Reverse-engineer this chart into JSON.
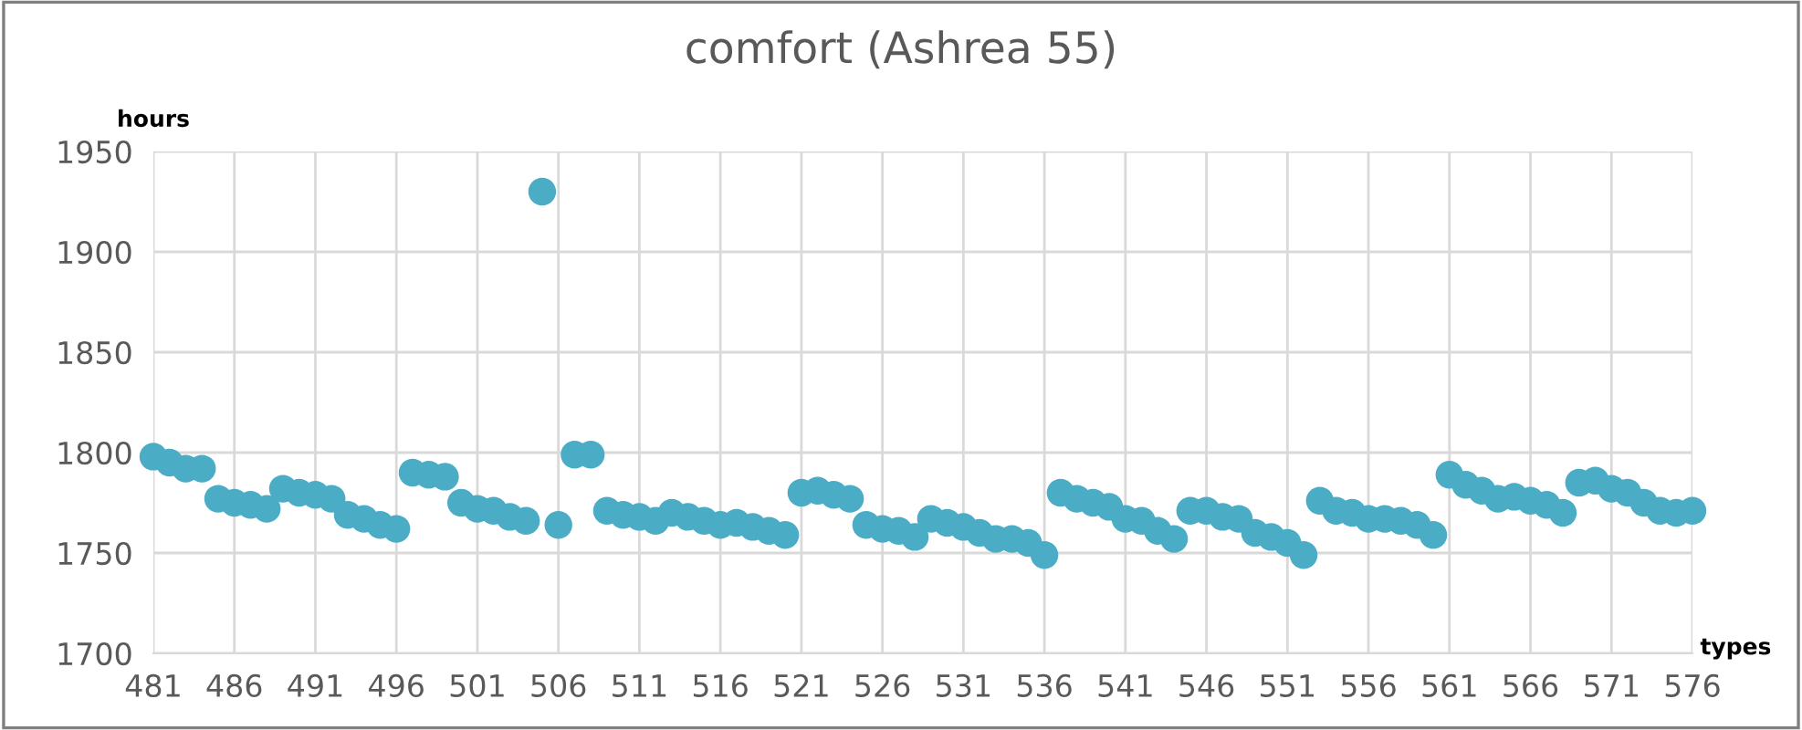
{
  "chart_data": {
    "type": "scatter",
    "title": "comfort (Ashrea 55)",
    "ylabel": "hours",
    "xlabel": "types",
    "x": [
      481,
      482,
      483,
      484,
      485,
      486,
      487,
      488,
      489,
      490,
      491,
      492,
      493,
      494,
      495,
      496,
      497,
      498,
      499,
      500,
      501,
      502,
      503,
      504,
      505,
      506,
      507,
      508,
      509,
      510,
      511,
      512,
      513,
      514,
      515,
      516,
      517,
      518,
      519,
      520,
      521,
      522,
      523,
      524,
      525,
      526,
      527,
      528,
      529,
      530,
      531,
      532,
      533,
      534,
      535,
      536,
      537,
      538,
      539,
      540,
      541,
      542,
      543,
      544,
      545,
      546,
      547,
      548,
      549,
      550,
      551,
      552,
      553,
      554,
      555,
      556,
      557,
      558,
      559,
      560,
      561,
      562,
      563,
      564,
      565,
      566,
      567,
      568,
      569,
      570,
      571,
      572,
      573,
      574,
      575,
      576
    ],
    "series": [
      {
        "color": "#4bacc6",
        "values": [
          1798,
          1795,
          1792,
          1792,
          1777,
          1775,
          1774,
          1772,
          1782,
          1780,
          1779,
          1777,
          1769,
          1767,
          1764,
          1762,
          1790,
          1789,
          1788,
          1775,
          1772,
          1771,
          1768,
          1766,
          1930,
          1764,
          1799,
          1799,
          1771,
          1769,
          1768,
          1766,
          1770,
          1768,
          1766,
          1764,
          1765,
          1763,
          1761,
          1759,
          1780,
          1781,
          1779,
          1777,
          1764,
          1762,
          1761,
          1758,
          1767,
          1765,
          1763,
          1760,
          1757,
          1757,
          1755,
          1749,
          1780,
          1777,
          1775,
          1773,
          1767,
          1766,
          1761,
          1757,
          1771,
          1771,
          1768,
          1767,
          1760,
          1758,
          1755,
          1749,
          1776,
          1771,
          1770,
          1767,
          1767,
          1766,
          1764,
          1759,
          1789,
          1784,
          1781,
          1777,
          1778,
          1776,
          1774,
          1770,
          1785,
          1786,
          1782,
          1780,
          1775,
          1771,
          1770,
          1771
        ]
      }
    ],
    "xlim": [
      481,
      576
    ],
    "xticks": [
      481,
      486,
      491,
      496,
      501,
      506,
      511,
      516,
      521,
      526,
      531,
      536,
      541,
      546,
      551,
      556,
      561,
      566,
      571,
      576
    ],
    "ylim": [
      1700,
      1950
    ],
    "yticks": [
      1700,
      1750,
      1800,
      1850,
      1900,
      1950
    ],
    "grid": true,
    "marker": "circle",
    "legend": false
  }
}
